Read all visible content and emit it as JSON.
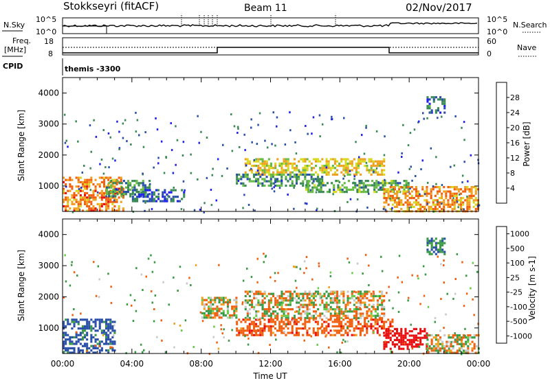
{
  "header": {
    "station": "Stokkseyri (fitACF)",
    "beam": "Beam 11",
    "date": "02/Nov/2017"
  },
  "top_panel": {
    "left_label": "N.Sky",
    "left_ticks": [
      "10^5",
      "10^0"
    ],
    "right_ticks": [
      "10^5",
      "10^0"
    ],
    "right_label": "N.Search"
  },
  "freq_panel": {
    "label_line1": "Freq.",
    "label_line2": "[MHz]",
    "left_ticks": [
      "18",
      "8"
    ],
    "right_ticks": [
      "60",
      "0"
    ],
    "right_label": "Nave"
  },
  "cpid_panel": {
    "label": "CPID",
    "program": "themis -3300"
  },
  "axes": {
    "ylabel": "Slant Range [km]",
    "xlabel": "Time UT",
    "y_ticks": [
      "4000",
      "3000",
      "2000",
      "1000"
    ],
    "x_ticks": [
      "00:00",
      "04:00",
      "08:00",
      "12:00",
      "16:00",
      "20:00",
      "00:00"
    ]
  },
  "colors": {
    "power_scale": [
      "#2222ee",
      "#2a4fa8",
      "#3a8a55",
      "#66bb44",
      "#d8d820",
      "#f0a020",
      "#f06010",
      "#e81010"
    ],
    "velocity_scale": [
      "#2222ee",
      "#2a4fa8",
      "#3a9a45",
      "#66cc44",
      "#c8c8c8",
      "#f0a020",
      "#f06010",
      "#e81010"
    ]
  },
  "chart_data": [
    {
      "type": "heatmap",
      "title": "Power",
      "colorbar_label": "Power [dB]",
      "colorbar_ticks": [
        "28",
        "24",
        "20",
        "16",
        "12",
        "8",
        "4"
      ],
      "x": [
        0,
        24
      ],
      "ylim": [
        180,
        4500
      ],
      "features": [
        {
          "t": [
            0,
            3.5
          ],
          "r": [
            200,
            1300
          ],
          "level": 26
        },
        {
          "t": [
            2.5,
            5
          ],
          "r": [
            700,
            1200
          ],
          "level": 13
        },
        {
          "t": [
            4,
            7
          ],
          "r": [
            500,
            900
          ],
          "level": 8
        },
        {
          "t": [
            10.5,
            18.5
          ],
          "r": [
            1400,
            1900
          ],
          "level": 21
        },
        {
          "t": [
            10,
            15
          ],
          "r": [
            1000,
            1400
          ],
          "level": 12
        },
        {
          "t": [
            14,
            20
          ],
          "r": [
            800,
            1200
          ],
          "level": 14
        },
        {
          "t": [
            18.5,
            24
          ],
          "r": [
            200,
            1000
          ],
          "level": 25
        },
        {
          "t": [
            21,
            22
          ],
          "r": [
            3400,
            3900
          ],
          "level": 10
        }
      ]
    },
    {
      "type": "heatmap",
      "title": "Velocity",
      "colorbar_label": "Velocity [m s-1]",
      "colorbar_ticks": [
        "1000",
        "500",
        "100",
        "25",
        "-25",
        "-100",
        "-500",
        "-1000"
      ],
      "x": [
        0,
        24
      ],
      "ylim": [
        180,
        4500
      ],
      "features": [
        {
          "t": [
            0,
            3
          ],
          "r": [
            200,
            1300
          ],
          "level": 400
        },
        {
          "t": [
            8,
            10
          ],
          "r": [
            1300,
            2000
          ],
          "level": 0
        },
        {
          "t": [
            10.5,
            18.5
          ],
          "r": [
            1300,
            2200
          ],
          "level": 0
        },
        {
          "t": [
            10,
            19
          ],
          "r": [
            800,
            1300
          ],
          "level": -200
        },
        {
          "t": [
            18.5,
            21
          ],
          "r": [
            300,
            1000
          ],
          "level": -700
        },
        {
          "t": [
            21,
            24
          ],
          "r": [
            200,
            800
          ],
          "level": 0
        },
        {
          "t": [
            21,
            22
          ],
          "r": [
            3400,
            3900
          ],
          "level": 300
        }
      ]
    }
  ]
}
